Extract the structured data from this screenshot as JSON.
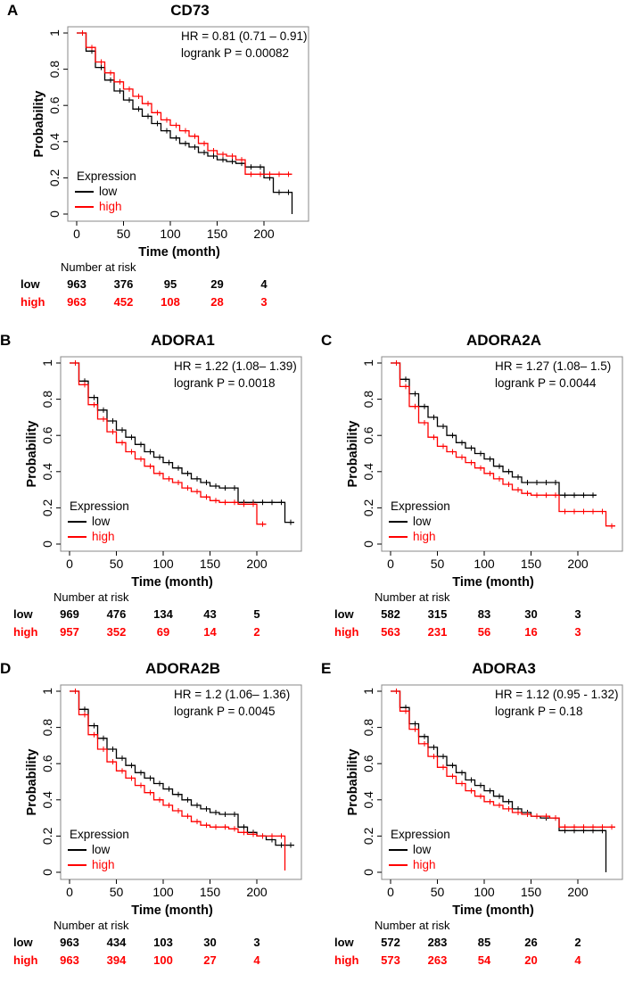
{
  "colors": {
    "low": "#000000",
    "high": "#ff0000"
  },
  "common": {
    "ylabel": "Probability",
    "xlabel": "Time (month)",
    "x_ticks": [
      0,
      50,
      100,
      150,
      200
    ],
    "y_ticks": [
      0,
      0.2,
      0.4,
      0.6,
      0.8,
      1
    ],
    "y_tick_labels": [
      "0",
      "0.2",
      "0.4",
      "0.6",
      "0.8",
      "1"
    ],
    "legend_title": "Expression",
    "legend_low": "low",
    "legend_high": "high",
    "risk_title": "Number at risk",
    "risk_low_label": "low",
    "risk_high_label": "high"
  },
  "chart_data": [
    {
      "panel": "A",
      "title": "CD73",
      "type": "line",
      "hr": "HR = 0.81 (0.71 – 0.91)",
      "logrank": "logrank P = 0.00082",
      "xlim": [
        0,
        240
      ],
      "ylim": [
        0,
        1
      ],
      "series": [
        {
          "name": "low",
          "x": [
            0,
            10,
            20,
            30,
            40,
            50,
            60,
            70,
            80,
            90,
            100,
            110,
            120,
            130,
            140,
            150,
            160,
            170,
            180,
            190,
            200,
            210,
            220,
            230
          ],
          "y": [
            1,
            0.9,
            0.81,
            0.74,
            0.68,
            0.63,
            0.58,
            0.54,
            0.5,
            0.46,
            0.42,
            0.39,
            0.37,
            0.34,
            0.32,
            0.3,
            0.29,
            0.28,
            0.26,
            0.26,
            0.2,
            0.12,
            0.12,
            0
          ]
        },
        {
          "name": "high",
          "x": [
            0,
            10,
            20,
            30,
            40,
            50,
            60,
            70,
            80,
            90,
            100,
            110,
            120,
            130,
            140,
            150,
            160,
            170,
            180,
            190,
            200,
            210,
            220,
            230
          ],
          "y": [
            1,
            0.92,
            0.84,
            0.78,
            0.73,
            0.69,
            0.65,
            0.61,
            0.56,
            0.52,
            0.49,
            0.46,
            0.43,
            0.39,
            0.35,
            0.33,
            0.32,
            0.3,
            0.22,
            0.22,
            0.22,
            0.22,
            0.22,
            0.22
          ]
        }
      ],
      "risk_low": [
        "963",
        "376",
        "95",
        "29",
        "4"
      ],
      "risk_high": [
        "963",
        "452",
        "108",
        "28",
        "3"
      ]
    },
    {
      "panel": "B",
      "title": "ADORA1",
      "type": "line",
      "hr": "HR = 1.22 (1.08– 1.39)",
      "logrank": "logrank P = 0.0018",
      "xlim": [
        0,
        240
      ],
      "ylim": [
        0,
        1
      ],
      "series": [
        {
          "name": "low",
          "x": [
            0,
            10,
            20,
            30,
            40,
            50,
            60,
            70,
            80,
            90,
            100,
            110,
            120,
            130,
            140,
            150,
            160,
            170,
            180,
            190,
            200,
            210,
            220,
            230,
            240
          ],
          "y": [
            1,
            0.9,
            0.81,
            0.74,
            0.68,
            0.63,
            0.59,
            0.55,
            0.51,
            0.48,
            0.45,
            0.42,
            0.39,
            0.36,
            0.34,
            0.32,
            0.31,
            0.31,
            0.23,
            0.23,
            0.23,
            0.23,
            0.23,
            0.12,
            0.12
          ]
        },
        {
          "name": "high",
          "x": [
            0,
            10,
            20,
            30,
            40,
            50,
            60,
            70,
            80,
            90,
            100,
            110,
            120,
            130,
            140,
            150,
            160,
            170,
            180,
            190,
            200,
            210
          ],
          "y": [
            1,
            0.88,
            0.77,
            0.69,
            0.62,
            0.56,
            0.51,
            0.47,
            0.43,
            0.39,
            0.36,
            0.34,
            0.31,
            0.29,
            0.26,
            0.24,
            0.23,
            0.23,
            0.22,
            0.22,
            0.11,
            0.11
          ]
        }
      ],
      "risk_low": [
        "969",
        "476",
        "134",
        "43",
        "5"
      ],
      "risk_high": [
        "957",
        "352",
        "69",
        "14",
        "2"
      ]
    },
    {
      "panel": "C",
      "title": "ADORA2A",
      "type": "line",
      "hr": "HR = 1.27 (1.08– 1.5)",
      "logrank": "logrank P = 0.0044",
      "xlim": [
        0,
        240
      ],
      "ylim": [
        0,
        1
      ],
      "series": [
        {
          "name": "low",
          "x": [
            0,
            10,
            20,
            30,
            40,
            50,
            60,
            70,
            80,
            90,
            100,
            110,
            120,
            130,
            140,
            150,
            160,
            170,
            180,
            190,
            200,
            210,
            220
          ],
          "y": [
            1,
            0.91,
            0.83,
            0.76,
            0.7,
            0.65,
            0.6,
            0.56,
            0.53,
            0.5,
            0.47,
            0.43,
            0.4,
            0.37,
            0.34,
            0.34,
            0.34,
            0.34,
            0.27,
            0.27,
            0.27,
            0.27,
            0.27
          ]
        },
        {
          "name": "high",
          "x": [
            0,
            10,
            20,
            30,
            40,
            50,
            60,
            70,
            80,
            90,
            100,
            110,
            120,
            130,
            140,
            150,
            160,
            170,
            180,
            190,
            200,
            210,
            220,
            230,
            240
          ],
          "y": [
            1,
            0.87,
            0.76,
            0.67,
            0.59,
            0.54,
            0.51,
            0.48,
            0.45,
            0.42,
            0.39,
            0.36,
            0.33,
            0.3,
            0.28,
            0.27,
            0.27,
            0.27,
            0.18,
            0.18,
            0.18,
            0.18,
            0.18,
            0.1,
            0.1
          ]
        }
      ],
      "risk_low": [
        "582",
        "315",
        "83",
        "30",
        "3"
      ],
      "risk_high": [
        "563",
        "231",
        "56",
        "16",
        "3"
      ]
    },
    {
      "panel": "D",
      "title": "ADORA2B",
      "type": "line",
      "hr": "HR = 1.2 (1.06– 1.36)",
      "logrank": "logrank P = 0.0045",
      "xlim": [
        0,
        240
      ],
      "ylim": [
        0,
        1
      ],
      "series": [
        {
          "name": "low",
          "x": [
            0,
            10,
            20,
            30,
            40,
            50,
            60,
            70,
            80,
            90,
            100,
            110,
            120,
            130,
            140,
            150,
            160,
            170,
            180,
            190,
            200,
            210,
            220,
            230,
            240
          ],
          "y": [
            1,
            0.9,
            0.81,
            0.74,
            0.68,
            0.63,
            0.59,
            0.55,
            0.52,
            0.49,
            0.46,
            0.43,
            0.4,
            0.37,
            0.35,
            0.33,
            0.32,
            0.32,
            0.25,
            0.22,
            0.2,
            0.18,
            0.15,
            0.15,
            0.15
          ]
        },
        {
          "name": "high",
          "x": [
            0,
            10,
            20,
            30,
            40,
            50,
            60,
            70,
            80,
            90,
            100,
            110,
            120,
            130,
            140,
            150,
            160,
            170,
            180,
            190,
            200,
            210,
            220,
            230
          ],
          "y": [
            1,
            0.87,
            0.76,
            0.68,
            0.61,
            0.56,
            0.52,
            0.48,
            0.44,
            0.4,
            0.37,
            0.34,
            0.31,
            0.28,
            0.26,
            0.25,
            0.25,
            0.24,
            0.22,
            0.21,
            0.2,
            0.2,
            0.2,
            0.01
          ]
        }
      ],
      "risk_low": [
        "963",
        "434",
        "103",
        "30",
        "3"
      ],
      "risk_high": [
        "963",
        "394",
        "100",
        "27",
        "4"
      ]
    },
    {
      "panel": "E",
      "title": "ADORA3",
      "type": "line",
      "hr": "HR = 1.12 (0.95 - 1.32)",
      "logrank": "logrank P = 0.18",
      "xlim": [
        0,
        240
      ],
      "ylim": [
        0,
        1
      ],
      "series": [
        {
          "name": "low",
          "x": [
            0,
            10,
            20,
            30,
            40,
            50,
            60,
            70,
            80,
            90,
            100,
            110,
            120,
            130,
            140,
            150,
            160,
            170,
            180,
            190,
            200,
            210,
            220,
            230
          ],
          "y": [
            1,
            0.91,
            0.82,
            0.75,
            0.69,
            0.64,
            0.59,
            0.55,
            0.51,
            0.48,
            0.45,
            0.42,
            0.39,
            0.35,
            0.33,
            0.31,
            0.3,
            0.3,
            0.23,
            0.23,
            0.23,
            0.23,
            0.23,
            0
          ]
        },
        {
          "name": "high",
          "x": [
            0,
            10,
            20,
            30,
            40,
            50,
            60,
            70,
            80,
            90,
            100,
            110,
            120,
            130,
            140,
            150,
            160,
            170,
            180,
            190,
            200,
            210,
            220,
            230,
            240
          ],
          "y": [
            1,
            0.89,
            0.79,
            0.71,
            0.64,
            0.58,
            0.53,
            0.49,
            0.45,
            0.42,
            0.39,
            0.37,
            0.35,
            0.33,
            0.32,
            0.31,
            0.31,
            0.3,
            0.25,
            0.25,
            0.25,
            0.25,
            0.25,
            0.25,
            0.25
          ]
        }
      ],
      "risk_low": [
        "572",
        "283",
        "85",
        "26",
        "2"
      ],
      "risk_high": [
        "573",
        "263",
        "54",
        "20",
        "4"
      ]
    }
  ]
}
